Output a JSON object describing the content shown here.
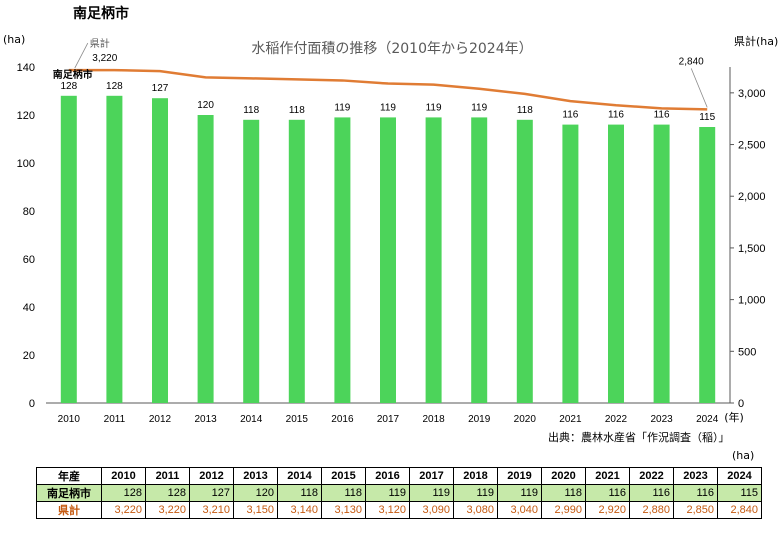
{
  "page": {
    "title": "南足柄市"
  },
  "chart_data": {
    "type": "bar",
    "title": "水稲作付面積の推移（2010年から2024年）",
    "categories": [
      "2010",
      "2011",
      "2012",
      "2013",
      "2014",
      "2015",
      "2016",
      "2017",
      "2018",
      "2019",
      "2020",
      "2021",
      "2022",
      "2023",
      "2024"
    ],
    "x_unit_label": "(年)",
    "series": [
      {
        "name": "南足柄市",
        "type": "bar",
        "axis": "left",
        "color": "#4cd45a",
        "values": [
          128,
          128,
          127,
          120,
          118,
          118,
          119,
          119,
          119,
          119,
          118,
          116,
          116,
          116,
          115
        ]
      },
      {
        "name": "県計",
        "type": "line",
        "axis": "right",
        "color": "#e07c34",
        "values": [
          3220,
          3220,
          3210,
          3150,
          3140,
          3130,
          3120,
          3090,
          3080,
          3040,
          2990,
          2920,
          2880,
          2850,
          2840
        ],
        "labelled_points": {
          "first": "3,220",
          "last": "2,840"
        }
      }
    ],
    "y_left": {
      "label": "(ha)",
      "min": 0,
      "max": 140,
      "ticks": [
        0,
        20,
        40,
        60,
        80,
        100,
        120,
        140
      ]
    },
    "y_right": {
      "label": "県計(ha)",
      "min": 0,
      "max": 3250,
      "ticks": [
        0,
        500,
        1000,
        1500,
        2000,
        2500,
        3000
      ],
      "tick_labels": [
        "0",
        "500",
        "1,000",
        "1,500",
        "2,000",
        "2,500",
        "3,000"
      ]
    },
    "grid": false,
    "source": "出典：農林水産省「作況調査（稲）」"
  },
  "table": {
    "unit": "(ha)",
    "header_label": "年産",
    "years": [
      "2010",
      "2011",
      "2012",
      "2013",
      "2014",
      "2015",
      "2016",
      "2017",
      "2018",
      "2019",
      "2020",
      "2021",
      "2022",
      "2023",
      "2024"
    ],
    "rows": [
      {
        "label": "南足柄市",
        "values": [
          "128",
          "128",
          "127",
          "120",
          "118",
          "118",
          "119",
          "119",
          "119",
          "119",
          "118",
          "116",
          "116",
          "116",
          "115"
        ]
      },
      {
        "label": "県計",
        "values": [
          "3,220",
          "3,220",
          "3,210",
          "3,150",
          "3,140",
          "3,130",
          "3,120",
          "3,090",
          "3,080",
          "3,040",
          "2,990",
          "2,920",
          "2,880",
          "2,850",
          "2,840"
        ]
      }
    ]
  }
}
